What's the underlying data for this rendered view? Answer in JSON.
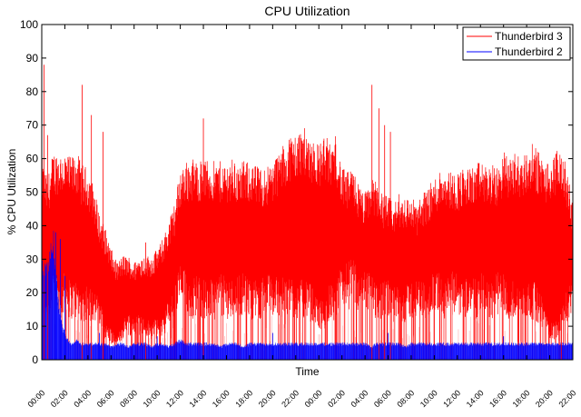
{
  "chart_data": {
    "type": "line",
    "title": "CPU Utilization",
    "xlabel": "Time",
    "ylabel": "% CPU Utilization",
    "ylim": [
      0,
      100
    ],
    "yticks": [
      0,
      10,
      20,
      30,
      40,
      50,
      60,
      70,
      80,
      90,
      100
    ],
    "xlim": [
      0,
      46
    ],
    "x_tick_values": [
      0,
      2,
      4,
      6,
      8,
      10,
      12,
      14,
      16,
      18,
      20,
      22,
      24,
      26,
      28,
      30,
      32,
      34,
      36,
      38,
      40,
      42,
      44,
      46
    ],
    "x_tick_labels": [
      "00:00",
      "02:00",
      "04:00",
      "06:00",
      "08:00",
      "10:00",
      "12:00",
      "14:00",
      "16:00",
      "18:00",
      "20:00",
      "22:00",
      "00:00",
      "02:00",
      "04:00",
      "06:00",
      "08:00",
      "10:00",
      "12:00",
      "14:00",
      "16:00",
      "18:00",
      "20:00",
      "22:00"
    ],
    "grid": false,
    "legend_position": "top-right",
    "series": [
      {
        "name": "Thunderbird 3",
        "color": "#ff0000",
        "x": [
          0,
          0.5,
          1,
          1.5,
          2,
          2.5,
          3,
          3.5,
          4,
          4.5,
          5,
          5.5,
          6,
          6.5,
          7,
          7.5,
          8,
          8.5,
          9,
          9.5,
          10,
          10.5,
          11,
          11.5,
          12,
          12.5,
          13,
          13.5,
          14,
          14.5,
          15,
          15.5,
          16,
          16.5,
          17,
          17.5,
          18,
          18.5,
          19,
          19.5,
          20,
          20.5,
          21,
          21.5,
          22,
          22.5,
          23,
          23.5,
          24,
          24.5,
          25,
          25.5,
          26,
          26.5,
          27,
          27.5,
          28,
          28.5,
          29,
          29.5,
          30,
          30.5,
          31,
          31.5,
          32,
          32.5,
          33,
          33.5,
          34,
          34.5,
          35,
          35.5,
          36,
          36.5,
          37,
          37.5,
          38,
          38.5,
          39,
          39.5,
          40,
          40.5,
          41,
          41.5,
          42,
          42.5,
          43,
          43.5,
          44,
          44.5,
          45,
          45.5,
          46
        ],
        "upper": [
          58,
          52,
          60,
          60,
          60,
          58,
          60,
          56,
          55,
          50,
          42,
          38,
          32,
          28,
          30,
          30,
          28,
          30,
          30,
          30,
          32,
          35,
          40,
          45,
          55,
          57,
          58,
          57,
          58,
          57,
          57,
          57,
          57,
          58,
          56,
          57,
          57,
          56,
          55,
          56,
          57,
          60,
          62,
          65,
          65,
          67,
          66,
          64,
          62,
          65,
          62,
          65,
          55,
          54,
          55,
          50,
          48,
          52,
          52,
          48,
          47,
          45,
          48,
          47,
          47,
          45,
          48,
          50,
          52,
          55,
          56,
          54,
          54,
          55,
          55,
          56,
          57,
          56,
          56,
          55,
          60,
          58,
          60,
          58,
          60,
          62,
          60,
          58,
          56,
          60,
          60,
          55,
          45
        ],
        "lower": [
          20,
          18,
          25,
          20,
          22,
          20,
          20,
          18,
          20,
          18,
          15,
          10,
          8,
          5,
          10,
          12,
          12,
          12,
          10,
          10,
          10,
          12,
          15,
          18,
          25,
          22,
          20,
          22,
          20,
          20,
          20,
          22,
          20,
          20,
          22,
          22,
          20,
          20,
          20,
          22,
          20,
          22,
          20,
          22,
          20,
          20,
          20,
          18,
          15,
          15,
          20,
          18,
          25,
          25,
          25,
          22,
          22,
          22,
          20,
          20,
          20,
          18,
          20,
          18,
          20,
          20,
          20,
          20,
          22,
          22,
          20,
          22,
          22,
          20,
          22,
          20,
          22,
          20,
          20,
          22,
          22,
          20,
          20,
          18,
          20,
          20,
          18,
          15,
          10,
          10,
          15,
          18,
          20
        ]
      },
      {
        "name": "Thunderbird 2",
        "color": "#0000ff",
        "x": [
          0,
          0.5,
          1,
          1.5,
          2,
          2.5,
          3,
          3.5,
          4,
          4.5,
          5,
          5.5,
          6,
          6.5,
          7,
          7.5,
          8,
          8.5,
          9,
          9.5,
          10,
          10.5,
          11,
          11.5,
          12,
          12.5,
          13,
          13.5,
          14,
          14.5,
          15,
          15.5,
          16,
          16.5,
          17,
          17.5,
          18,
          18.5,
          19,
          19.5,
          20,
          20.5,
          21,
          21.5,
          22,
          22.5,
          23,
          23.5,
          24,
          24.5,
          25,
          25.5,
          26,
          26.5,
          27,
          27.5,
          28,
          28.5,
          29,
          29.5,
          30,
          30.5,
          31,
          31.5,
          32,
          32.5,
          33,
          33.5,
          34,
          34.5,
          35,
          35.5,
          36,
          36.5,
          37,
          37.5,
          38,
          38.5,
          39,
          39.5,
          40,
          40.5,
          41,
          41.5,
          42,
          42.5,
          43,
          43.5,
          44,
          44.5,
          45,
          45.5,
          46
        ],
        "upper": [
          30,
          28,
          38,
          15,
          8,
          5,
          6,
          5,
          5,
          5,
          5,
          5,
          4,
          5,
          5,
          4,
          5,
          5,
          5,
          4,
          5,
          5,
          4,
          5,
          6,
          5,
          5,
          5,
          5,
          5,
          5,
          4,
          5,
          5,
          5,
          4,
          5,
          5,
          5,
          5,
          5,
          5,
          5,
          5,
          5,
          5,
          5,
          5,
          5,
          5,
          5,
          5,
          5,
          5,
          5,
          5,
          5,
          4,
          5,
          5,
          5,
          5,
          5,
          4,
          5,
          5,
          5,
          5,
          5,
          5,
          5,
          5,
          5,
          5,
          5,
          5,
          5,
          5,
          5,
          5,
          5,
          5,
          5,
          5,
          5,
          5,
          5,
          5,
          5,
          5,
          5,
          5,
          5
        ],
        "lower": [
          0,
          0,
          0,
          0,
          0,
          0,
          0,
          0,
          0,
          0,
          0,
          0,
          0,
          0,
          0,
          0,
          0,
          0,
          0,
          0,
          0,
          0,
          0,
          0,
          0,
          0,
          0,
          0,
          0,
          0,
          0,
          0,
          0,
          0,
          0,
          0,
          0,
          0,
          0,
          0,
          0,
          0,
          0,
          0,
          0,
          0,
          0,
          0,
          0,
          0,
          0,
          0,
          0,
          0,
          0,
          0,
          0,
          0,
          0,
          0,
          0,
          0,
          0,
          0,
          0,
          0,
          0,
          0,
          0,
          0,
          0,
          0,
          0,
          0,
          0,
          0,
          0,
          0,
          0,
          0,
          0,
          0,
          0,
          0,
          0,
          0,
          0,
          0,
          0,
          0,
          0,
          0,
          0
        ]
      }
    ],
    "spikes_red": [
      [
        0.2,
        88
      ],
      [
        0.5,
        67
      ],
      [
        3.5,
        82
      ],
      [
        4.3,
        73
      ],
      [
        5.3,
        68
      ],
      [
        9.0,
        35
      ],
      [
        14.0,
        72
      ],
      [
        28.6,
        82
      ],
      [
        29.2,
        75
      ],
      [
        29.7,
        70
      ],
      [
        30.2,
        68
      ],
      [
        45.0,
        60
      ]
    ],
    "spikes_blue": [
      [
        1.2,
        38
      ],
      [
        1.6,
        36
      ],
      [
        2.0,
        25
      ],
      [
        5.0,
        8
      ],
      [
        10.0,
        7
      ],
      [
        20.0,
        8
      ],
      [
        30.0,
        8
      ],
      [
        40.0,
        7
      ]
    ]
  }
}
